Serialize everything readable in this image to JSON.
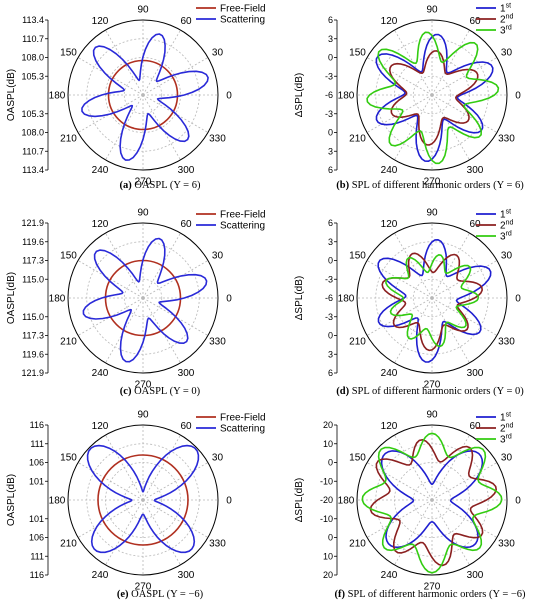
{
  "colors": {
    "free_field": "#b03020",
    "scattering": "#2a2ad8",
    "h1": "#1f1fd0",
    "h2": "#8b2020",
    "h3": "#33cc11",
    "grid": "#b8b8b8"
  },
  "captions": {
    "a": {
      "tag": "(a)",
      "text": " OASPL (Υ = 6)"
    },
    "b": {
      "tag": "(b)",
      "text": " SPL of different harmonic orders (Υ = 6)"
    },
    "c": {
      "tag": "(c)",
      "text": " OASPL (Υ = 0)"
    },
    "d": {
      "tag": "(d)",
      "text": " SPL of different harmonic orders (Υ = 0)"
    },
    "e": {
      "tag": "(e)",
      "text": " OASPL (Υ = −6)"
    },
    "f": {
      "tag": "(f)",
      "text": " SPL of different harmonic orders (Υ = −6)"
    }
  },
  "chart_data": [
    {
      "panel": "a",
      "type": "polar",
      "angle_labels": [
        "0",
        "30",
        "60",
        "90",
        "120",
        "150",
        "180",
        "210",
        "240",
        "270",
        "300",
        "330"
      ],
      "rlabel": "OASPL(dB)",
      "radial_ticks_upper": [
        "113.4",
        "110.7",
        "108.0",
        "105.3"
      ],
      "radial_ticks_lower": [
        "105.3",
        "108.0",
        "110.7",
        "113.4"
      ],
      "legend": [
        "Free-Field",
        "Scattering"
      ],
      "series": [
        {
          "name": "Free-Field",
          "color_key": "free_field",
          "radius": 0.46
        },
        {
          "name": "Scattering",
          "color_key": "scattering",
          "lobes": 6,
          "phase_deg": 15,
          "base": 0.55,
          "amp": 0.32
        }
      ]
    },
    {
      "panel": "b",
      "type": "polar",
      "angle_labels": [
        "0",
        "30",
        "60",
        "90",
        "120",
        "150",
        "180",
        "210",
        "240",
        "270",
        "300",
        "330"
      ],
      "rlabel": "ΔSPL(dB)",
      "radial_ticks_upper": [
        "6",
        "3",
        "0",
        "-3"
      ],
      "radial_ticks_lower": [
        "-3",
        "0",
        "3",
        "6"
      ],
      "center_label": "-6",
      "legend": [
        "1st",
        "2nd",
        "3rd"
      ],
      "series": [
        {
          "name": "1st",
          "color_key": "h1",
          "lobes": 6,
          "phase_deg": 25,
          "base": 0.6,
          "amp": 0.25
        },
        {
          "name": "2nd",
          "color_key": "h2",
          "lobes": 6,
          "phase_deg": 25,
          "base": 0.48,
          "amp": 0.15
        },
        {
          "name": "3rd",
          "color_key": "h3",
          "lobes": 8,
          "phase_deg": 5,
          "base": 0.68,
          "amp": 0.2
        }
      ]
    },
    {
      "panel": "c",
      "type": "polar",
      "angle_labels": [
        "0",
        "30",
        "60",
        "90",
        "120",
        "150",
        "180",
        "210",
        "240",
        "270",
        "300",
        "330"
      ],
      "rlabel": "OASPL(dB)",
      "radial_ticks_upper": [
        "121.9",
        "119.6",
        "117.3",
        "115.0"
      ],
      "radial_ticks_lower": [
        "115.0",
        "117.3",
        "119.6",
        "121.9"
      ],
      "legend": [
        "Free-Field",
        "Scattering"
      ],
      "series": [
        {
          "name": "Free-Field",
          "color_key": "free_field",
          "radius": 0.5
        },
        {
          "name": "Scattering",
          "color_key": "scattering",
          "lobes": 6,
          "phase_deg": 15,
          "base": 0.55,
          "amp": 0.3
        }
      ]
    },
    {
      "panel": "d",
      "type": "polar",
      "angle_labels": [
        "0",
        "30",
        "60",
        "90",
        "120",
        "150",
        "180",
        "210",
        "240",
        "270",
        "300",
        "330"
      ],
      "rlabel": "ΔSPL(dB)",
      "radial_ticks_upper": [
        "6",
        "3",
        "0",
        "-3"
      ],
      "radial_ticks_lower": [
        "-3",
        "0",
        "3",
        "6"
      ],
      "center_label": "-6",
      "legend": [
        "1st",
        "2nd",
        "3rd"
      ],
      "series": [
        {
          "name": "1st",
          "color_key": "h1",
          "lobes": 6,
          "phase_deg": 25,
          "base": 0.58,
          "amp": 0.24
        },
        {
          "name": "2nd",
          "color_key": "h2",
          "lobes": 7,
          "phase_deg": 10,
          "base": 0.52,
          "amp": 0.14
        },
        {
          "name": "3rd",
          "color_key": "h3",
          "lobes": 9,
          "phase_deg": 0,
          "base": 0.5,
          "amp": 0.12
        }
      ]
    },
    {
      "panel": "e",
      "type": "polar",
      "angle_labels": [
        "0",
        "30",
        "60",
        "90",
        "120",
        "150",
        "180",
        "210",
        "240",
        "270",
        "300",
        "330"
      ],
      "rlabel": "OASPL(dB)",
      "radial_ticks_upper": [
        "116",
        "111",
        "106",
        "101"
      ],
      "radial_ticks_lower": [
        "101",
        "106",
        "111",
        "116"
      ],
      "legend": [
        "Free-Field",
        "Scattering"
      ],
      "series": [
        {
          "name": "Free-Field",
          "color_key": "free_field",
          "radius": 0.6
        },
        {
          "name": "Scattering",
          "color_key": "scattering",
          "lobes": 4,
          "phase_deg": 45,
          "base": 0.55,
          "amp": 0.4
        }
      ]
    },
    {
      "panel": "f",
      "type": "polar",
      "angle_labels": [
        "0",
        "30",
        "60",
        "90",
        "120",
        "150",
        "180",
        "210",
        "240",
        "270",
        "300",
        "330"
      ],
      "rlabel": "ΔSPL(dB)",
      "radial_ticks_upper": [
        "20",
        "10",
        "0",
        "-10"
      ],
      "radial_ticks_lower": [
        "-10",
        "0",
        "10",
        "20"
      ],
      "center_label": "-20",
      "legend": [
        "1st",
        "2nd",
        "3rd"
      ],
      "series": [
        {
          "name": "1st",
          "color_key": "h1",
          "lobes": 4,
          "phase_deg": 45,
          "base": 0.55,
          "amp": 0.3
        },
        {
          "name": "2nd",
          "color_key": "h2",
          "lobes": 8,
          "phase_deg": 10,
          "base": 0.7,
          "amp": 0.15
        },
        {
          "name": "3rd",
          "color_key": "h3",
          "lobes": 8,
          "phase_deg": 0,
          "base": 0.78,
          "amp": 0.15
        }
      ]
    }
  ]
}
